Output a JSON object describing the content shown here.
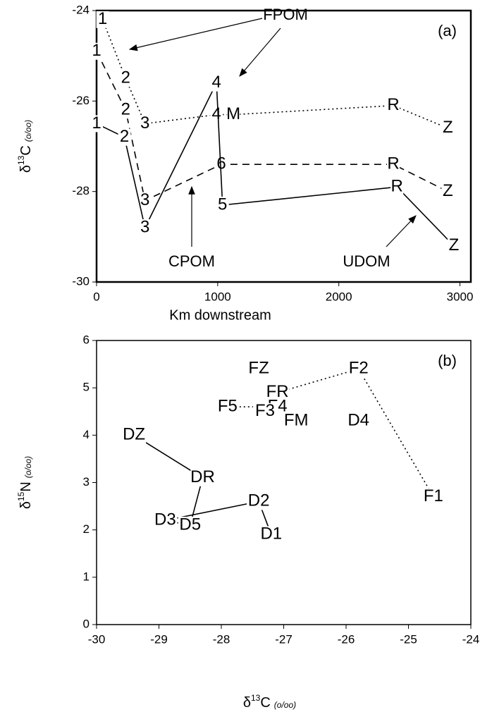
{
  "chart_data": [
    {
      "type": "line",
      "panel_label": "(a)",
      "xlabel": "Km downstream",
      "ylabel": {
        "symbol": "δ",
        "sup": "13",
        "letter": "C",
        "unit": "(o/oo)"
      },
      "xlim": [
        0,
        3090
      ],
      "xticks": [
        0,
        1000,
        2000,
        3000
      ],
      "ylim": [
        -30,
        -24
      ],
      "yticks": [
        -24,
        -26,
        -28,
        -30
      ],
      "series": [
        {
          "name": "FPOM",
          "style": "dotted",
          "color": "#000000",
          "x": [
            50,
            240,
            400,
            990,
            1130,
            2450,
            2900
          ],
          "values": [
            -24.2,
            -25.5,
            -26.5,
            -26.3,
            -26.3,
            -26.1,
            -26.6
          ],
          "labels": [
            "1",
            "2",
            "3",
            "4",
            "M",
            "R",
            "Z"
          ]
        },
        {
          "name": "CPOM",
          "style": "dashed",
          "color": "#000000",
          "x": [
            0,
            240,
            400,
            1030,
            2450,
            2900
          ],
          "values": [
            -24.9,
            -26.2,
            -28.2,
            -27.4,
            -27.4,
            -28.0
          ],
          "labels": [
            "1",
            "2",
            "3",
            "6",
            "R",
            "Z"
          ]
        },
        {
          "name": "UDOM",
          "style": "solid",
          "color": "#000000",
          "x": [
            0,
            230,
            400,
            990,
            1040,
            2480,
            2950
          ],
          "values": [
            -26.5,
            -26.8,
            -28.8,
            -25.6,
            -28.3,
            -27.9,
            -29.2
          ],
          "labels": [
            "1",
            "2",
            "3",
            "4",
            "5",
            "R",
            "Z"
          ]
        }
      ]
    },
    {
      "type": "scatter",
      "panel_label": "(b)",
      "xlabel": {
        "symbol": "δ",
        "sup": "13",
        "letter": "C",
        "unit": "(o/oo)"
      },
      "ylabel": {
        "symbol": "δ",
        "sup": "15",
        "letter": "N",
        "unit": "(o/oo)"
      },
      "xlim": [
        -30,
        -24
      ],
      "xticks": [
        -30,
        -29,
        -28,
        -27,
        -26,
        -25,
        -24
      ],
      "ylim": [
        0,
        6
      ],
      "yticks": [
        0,
        1,
        2,
        3,
        4,
        5,
        6
      ],
      "series": [
        {
          "style": "solid",
          "color": "#000000",
          "x": [
            -29.4,
            -28.3,
            -28.5,
            -28.9,
            -27.4,
            -27.2
          ],
          "values": [
            4.0,
            3.1,
            2.1,
            2.2,
            2.6,
            1.9
          ],
          "labels": [
            "DZ",
            "DR",
            "D5",
            "D3",
            "D2",
            "D1"
          ]
        },
        {
          "style": "dotted",
          "color": "#000000",
          "x": [
            -24.6,
            -25.8,
            -27.1,
            -27.1,
            -27.9
          ],
          "values": [
            2.7,
            5.4,
            4.9,
            4.6,
            4.6
          ],
          "labels": [
            "F1",
            "F2",
            "FR",
            "F4",
            "F5"
          ]
        },
        {
          "style": "none",
          "color": "#000000",
          "x": [
            -27.4,
            -27.3,
            -26.8,
            -25.8
          ],
          "values": [
            5.4,
            4.5,
            4.3,
            4.3
          ],
          "labels": [
            "FZ",
            "F3",
            "FM",
            "D4"
          ]
        }
      ]
    }
  ]
}
